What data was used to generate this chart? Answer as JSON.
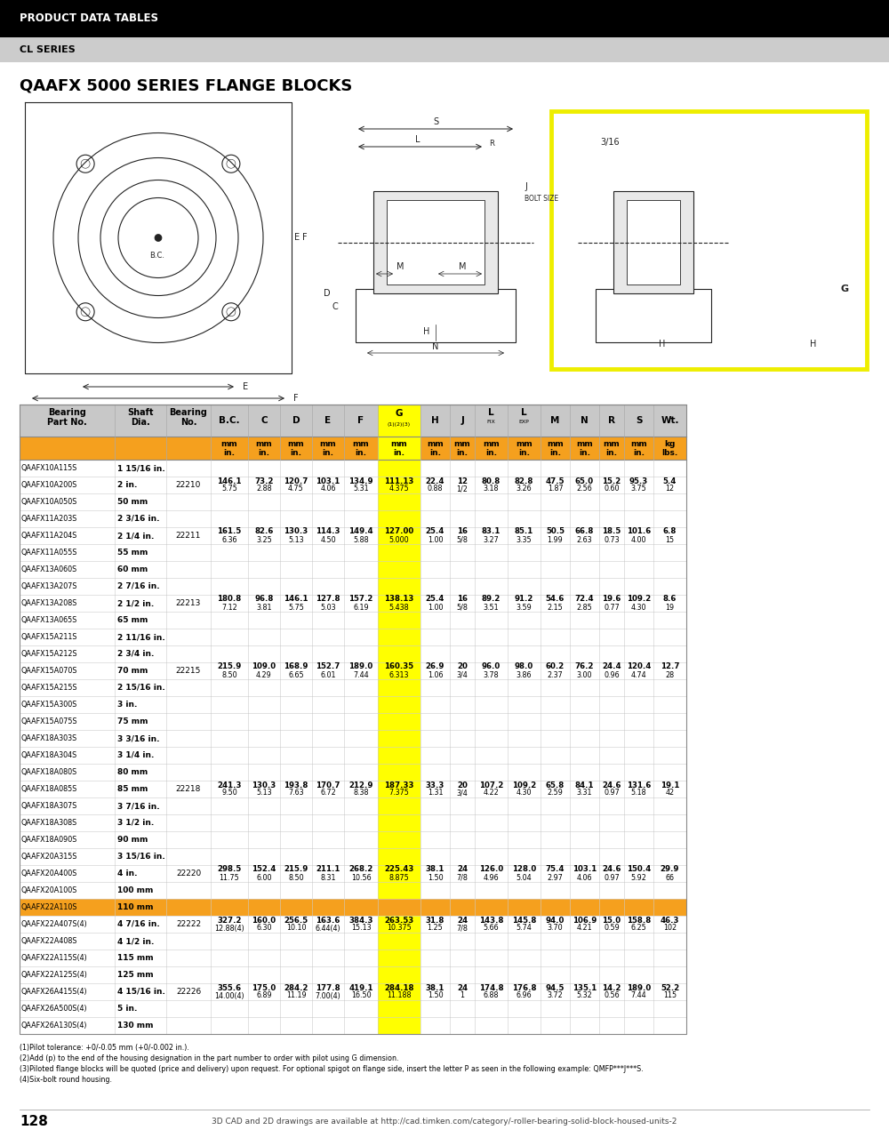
{
  "page_header": "PRODUCT DATA TABLES",
  "series_label": "CL SERIES",
  "title": "QAAFX 5000 SERIES FLANGE BLOCKS",
  "col_headers": [
    "Bearing\nPart No.",
    "Shaft\nDia.",
    "Bearing\nNo.",
    "B.C.",
    "C",
    "D",
    "E",
    "F",
    "G(1)(2)(3)",
    "H",
    "J",
    "L\nFIX",
    "L\nEXP",
    "M",
    "N",
    "R",
    "S",
    "Wt."
  ],
  "unit_row_mm": [
    "",
    "",
    "",
    "mm",
    "mm",
    "mm",
    "mm",
    "mm",
    "mm",
    "mm",
    "mm",
    "mm",
    "mm",
    "mm",
    "mm",
    "mm",
    "mm",
    "kg"
  ],
  "unit_row_in": [
    "",
    "",
    "",
    "in.",
    "in.",
    "in.",
    "in.",
    "in.",
    "in.",
    "in.",
    "in.",
    "in.",
    "in.",
    "in.",
    "in.",
    "in.",
    "in.",
    "lbs."
  ],
  "rows": [
    [
      "QAAFX10A115S",
      "1 15/16 in.",
      "",
      "",
      "",
      "",
      "",
      "",
      "",
      "",
      "",
      "",
      "",
      "",
      "",
      "",
      "",
      ""
    ],
    [
      "QAAFX10A200S",
      "2 in.",
      "22210",
      "146.1\n5.75",
      "73.2\n2.88",
      "120.7\n4.75",
      "103.1\n4.06",
      "134.9\n5.31",
      "111.13\n4.375",
      "22.4\n0.88",
      "12\n1/2",
      "80.8\n3.18",
      "82.8\n3.26",
      "47.5\n1.87",
      "65.0\n2.56",
      "15.2\n0.60",
      "95.3\n3.75",
      "5.4\n12"
    ],
    [
      "QAAFX10A050S",
      "50 mm",
      "",
      "",
      "",
      "",
      "",
      "",
      "",
      "",
      "",
      "",
      "",
      "",
      "",
      "",
      "",
      ""
    ],
    [
      "QAAFX11A203S",
      "2 3/16 in.",
      "",
      "",
      "",
      "",
      "",
      "",
      "",
      "",
      "",
      "",
      "",
      "",
      "",
      "",
      "",
      ""
    ],
    [
      "QAAFX11A204S",
      "2 1/4 in.",
      "22211",
      "161.5\n6.36",
      "82.6\n3.25",
      "130.3\n5.13",
      "114.3\n4.50",
      "149.4\n5.88",
      "127.00\n5.000",
      "25.4\n1.00",
      "16\n5/8",
      "83.1\n3.27",
      "85.1\n3.35",
      "50.5\n1.99",
      "66.8\n2.63",
      "18.5\n0.73",
      "101.6\n4.00",
      "6.8\n15"
    ],
    [
      "QAAFX11A055S",
      "55 mm",
      "",
      "",
      "",
      "",
      "",
      "",
      "",
      "",
      "",
      "",
      "",
      "",
      "",
      "",
      "",
      ""
    ],
    [
      "QAAFX13A060S",
      "60 mm",
      "",
      "",
      "",
      "",
      "",
      "",
      "",
      "",
      "",
      "",
      "",
      "",
      "",
      "",
      "",
      ""
    ],
    [
      "QAAFX13A207S",
      "2 7/16 in.",
      "",
      "",
      "",
      "",
      "",
      "",
      "",
      "",
      "",
      "",
      "",
      "",
      "",
      "",
      "",
      ""
    ],
    [
      "QAAFX13A208S",
      "2 1/2 in.",
      "22213",
      "180.8\n7.12",
      "96.8\n3.81",
      "146.1\n5.75",
      "127.8\n5.03",
      "157.2\n6.19",
      "138.13\n5.438",
      "25.4\n1.00",
      "16\n5/8",
      "89.2\n3.51",
      "91.2\n3.59",
      "54.6\n2.15",
      "72.4\n2.85",
      "19.6\n0.77",
      "109.2\n4.30",
      "8.6\n19"
    ],
    [
      "QAAFX13A065S",
      "65 mm",
      "",
      "",
      "",
      "",
      "",
      "",
      "",
      "",
      "",
      "",
      "",
      "",
      "",
      "",
      "",
      ""
    ],
    [
      "QAAFX15A211S",
      "2 11/16 in.",
      "",
      "",
      "",
      "",
      "",
      "",
      "",
      "",
      "",
      "",
      "",
      "",
      "",
      "",
      "",
      ""
    ],
    [
      "QAAFX15A212S",
      "2 3/4 in.",
      "",
      "",
      "",
      "",
      "",
      "",
      "",
      "",
      "",
      "",
      "",
      "",
      "",
      "",
      "",
      ""
    ],
    [
      "QAAFX15A070S",
      "70 mm",
      "22215",
      "215.9\n8.50",
      "109.0\n4.29",
      "168.9\n6.65",
      "152.7\n6.01",
      "189.0\n7.44",
      "160.35\n6.313",
      "26.9\n1.06",
      "20\n3/4",
      "96.0\n3.78",
      "98.0\n3.86",
      "60.2\n2.37",
      "76.2\n3.00",
      "24.4\n0.96",
      "120.4\n4.74",
      "12.7\n28"
    ],
    [
      "QAAFX15A215S",
      "2 15/16 in.",
      "",
      "",
      "",
      "",
      "",
      "",
      "",
      "",
      "",
      "",
      "",
      "",
      "",
      "",
      "",
      ""
    ],
    [
      "QAAFX15A300S",
      "3 in.",
      "",
      "",
      "",
      "",
      "",
      "",
      "",
      "",
      "",
      "",
      "",
      "",
      "",
      "",
      "",
      ""
    ],
    [
      "QAAFX15A075S",
      "75 mm",
      "",
      "",
      "",
      "",
      "",
      "",
      "",
      "",
      "",
      "",
      "",
      "",
      "",
      "",
      "",
      ""
    ],
    [
      "QAAFX18A303S",
      "3 3/16 in.",
      "",
      "",
      "",
      "",
      "",
      "",
      "",
      "",
      "",
      "",
      "",
      "",
      "",
      "",
      "",
      ""
    ],
    [
      "QAAFX18A304S",
      "3 1/4 in.",
      "",
      "",
      "",
      "",
      "",
      "",
      "",
      "",
      "",
      "",
      "",
      "",
      "",
      "",
      "",
      ""
    ],
    [
      "QAAFX18A080S",
      "80 mm",
      "",
      "",
      "",
      "",
      "",
      "",
      "",
      "",
      "",
      "",
      "",
      "",
      "",
      "",
      "",
      ""
    ],
    [
      "QAAFX18A085S",
      "85 mm",
      "22218",
      "241.3\n9.50",
      "130.3\n5.13",
      "193.8\n7.63",
      "170.7\n6.72",
      "212.9\n8.38",
      "187.33\n7.375",
      "33.3\n1.31",
      "20\n3/4",
      "107.2\n4.22",
      "109.2\n4.30",
      "65.8\n2.59",
      "84.1\n3.31",
      "24.6\n0.97",
      "131.6\n5.18",
      "19.1\n42"
    ],
    [
      "QAAFX18A307S",
      "3 7/16 in.",
      "",
      "",
      "",
      "",
      "",
      "",
      "",
      "",
      "",
      "",
      "",
      "",
      "",
      "",
      "",
      ""
    ],
    [
      "QAAFX18A308S",
      "3 1/2 in.",
      "",
      "",
      "",
      "",
      "",
      "",
      "",
      "",
      "",
      "",
      "",
      "",
      "",
      "",
      "",
      ""
    ],
    [
      "QAAFX18A090S",
      "90 mm",
      "",
      "",
      "",
      "",
      "",
      "",
      "",
      "",
      "",
      "",
      "",
      "",
      "",
      "",
      "",
      ""
    ],
    [
      "QAAFX20A315S",
      "3 15/16 in.",
      "",
      "",
      "",
      "",
      "",
      "",
      "",
      "",
      "",
      "",
      "",
      "",
      "",
      "",
      "",
      ""
    ],
    [
      "QAAFX20A400S",
      "4 in.",
      "22220",
      "298.5\n11.75",
      "152.4\n6.00",
      "215.9\n8.50",
      "211.1\n8.31",
      "268.2\n10.56",
      "225.43\n8.875",
      "38.1\n1.50",
      "24\n7/8",
      "126.0\n4.96",
      "128.0\n5.04",
      "75.4\n2.97",
      "103.1\n4.06",
      "24.6\n0.97",
      "150.4\n5.92",
      "29.9\n66"
    ],
    [
      "QAAFX20A100S",
      "100 mm",
      "",
      "",
      "",
      "",
      "",
      "",
      "",
      "",
      "",
      "",
      "",
      "",
      "",
      "",
      "",
      ""
    ],
    [
      "QAAFX22A110S",
      "110 mm",
      "",
      "",
      "",
      "",
      "",
      "",
      "",
      "",
      "",
      "",
      "",
      "",
      "",
      "",
      "",
      ""
    ],
    [
      "QAAFX22A407S(4)",
      "4 7/16 in.",
      "22222",
      "327.2\n12.88(4)",
      "160.0\n6.30",
      "256.5\n10.10",
      "163.6\n6.44(4)",
      "384.3\n15.13",
      "263.53\n10.375",
      "31.8\n1.25",
      "24\n7/8",
      "143.8\n5.66",
      "145.8\n5.74",
      "94.0\n3.70",
      "106.9\n4.21",
      "15.0\n0.59",
      "158.8\n6.25",
      "46.3\n102"
    ],
    [
      "QAAFX22A408S",
      "4 1/2 in.",
      "",
      "",
      "",
      "",
      "",
      "",
      "",
      "",
      "",
      "",
      "",
      "",
      "",
      "",
      "",
      ""
    ],
    [
      "QAAFX22A115S(4)",
      "115 mm",
      "",
      "",
      "",
      "",
      "",
      "",
      "",
      "",
      "",
      "",
      "",
      "",
      "",
      "",
      "",
      ""
    ],
    [
      "QAAFX22A125S(4)",
      "125 mm",
      "",
      "",
      "",
      "",
      "",
      "",
      "",
      "",
      "",
      "",
      "",
      "",
      "",
      "",
      "",
      ""
    ],
    [
      "QAAFX26A415S(4)",
      "4 15/16 in.",
      "22226",
      "355.6\n14.00(4)",
      "175.0\n6.89",
      "284.2\n11.19",
      "177.8\n7.00(4)",
      "419.1\n16.50",
      "284.18\n11.188",
      "38.1\n1.50",
      "24\n1",
      "174.8\n6.88",
      "176.8\n6.96",
      "94.5\n3.72",
      "135.1\n5.32",
      "14.2\n0.56",
      "189.0\n7.44",
      "52.2\n115"
    ],
    [
      "QAAFX26A500S(4)",
      "5 in.",
      "",
      "",
      "",
      "",
      "",
      "",
      "",
      "",
      "",
      "",
      "",
      "",
      "",
      "",
      "",
      ""
    ],
    [
      "QAAFX26A130S(4)",
      "130 mm",
      "",
      "",
      "",
      "",
      "",
      "",
      "",
      "",
      "",
      "",
      "",
      "",
      "",
      "",
      "",
      ""
    ]
  ],
  "footnotes": [
    "(1)Pilot tolerance: +0/-0.05 mm (+0/-0.002 in.).",
    "(2)Add (p) to the end of the housing designation in the part number to order with pilot using G dimension.",
    "(3)Piloted flange blocks will be quoted (price and delivery) upon request. For optional spigot on flange side, insert the letter P as seen in the following example: QMFP***J***S.",
    "(4)Six-bolt round housing."
  ],
  "page_number": "128",
  "footer_text": "3D CAD and 2D drawings are available at http://cad.timken.com/category/-roller-bearing-solid-block-housed-units-2",
  "header_bg": "#000000",
  "header_text_color": "#ffffff",
  "series_bg": "#cccccc",
  "orange_color": "#f5a01e",
  "table_header_bg": "#c8c8c8",
  "col_g_highlight": "#ffff00",
  "highlight_part_row": "QAAFX22A110S"
}
